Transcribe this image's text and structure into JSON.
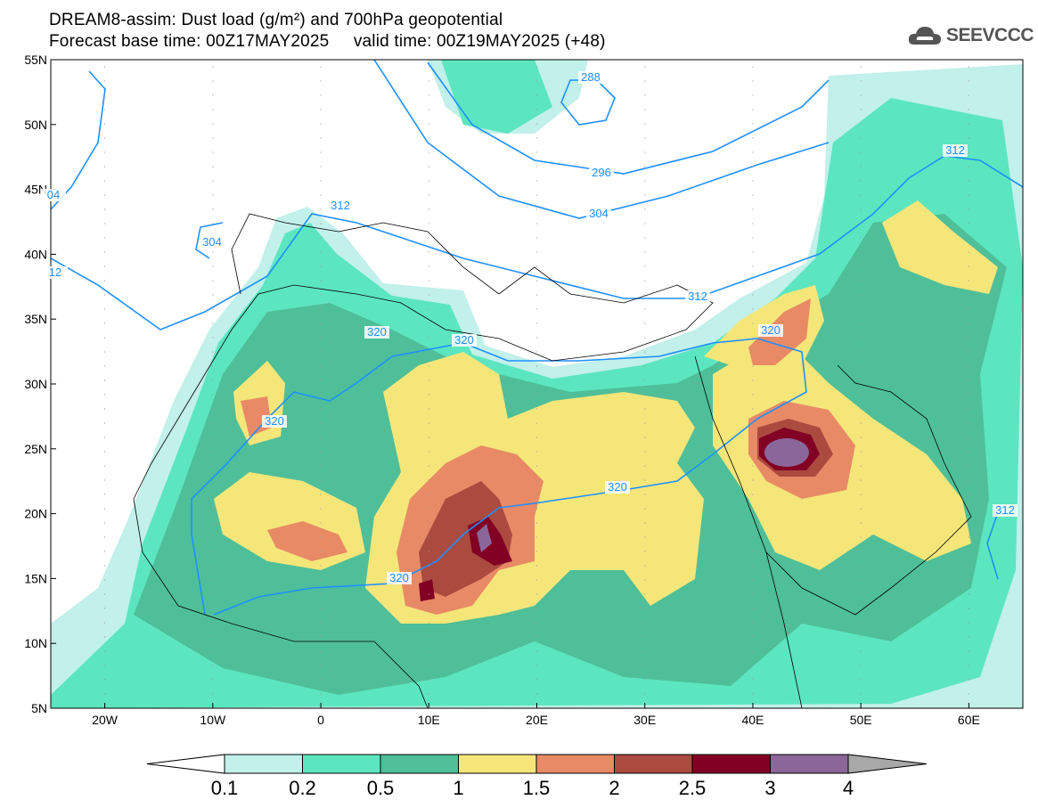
{
  "title": {
    "line1": "DREAM8-assim: Dust load (g/m²) and 700hPa geopotential",
    "line2": "Forecast base time: 00Z17MAY2025     valid time: 00Z19MAY2025 (+48)"
  },
  "logo": {
    "text": "SEEVCCC",
    "icon": "cloud-icon"
  },
  "map": {
    "lon_labels": [
      [
        "20W",
        -20
      ],
      [
        "10W",
        -10
      ],
      [
        "0",
        0
      ],
      [
        "10E",
        10
      ],
      [
        "20E",
        20
      ],
      [
        "30E",
        30
      ],
      [
        "40E",
        40
      ],
      [
        "50E",
        50
      ],
      [
        "60E",
        60
      ]
    ],
    "lat_labels": [
      [
        "5N",
        5
      ],
      [
        "10N",
        10
      ],
      [
        "15N",
        15
      ],
      [
        "20N",
        20
      ],
      [
        "25N",
        25
      ],
      [
        "30N",
        30
      ],
      [
        "35N",
        35
      ],
      [
        "40N",
        40
      ],
      [
        "45N",
        45
      ],
      [
        "50N",
        50
      ],
      [
        "55N",
        55
      ]
    ],
    "contour_labels": [
      "288",
      "296",
      "304",
      "312",
      "320",
      "320",
      "320",
      "320",
      "320",
      "320",
      "312",
      "312",
      "304",
      "12",
      "04",
      "312"
    ]
  },
  "colorbar": {
    "levels": [
      "0.1",
      "0.2",
      "0.5",
      "1",
      "1.5",
      "2",
      "2.5",
      "3",
      "4"
    ],
    "colors": [
      "#c2f0ea",
      "#5ce6bf",
      "#4fbf99",
      "#f5e67a",
      "#e88a66",
      "#ab4a3f",
      "#820024",
      "#8a6699"
    ],
    "over_color": "#a8a8a8",
    "under_color": "#ffffff"
  },
  "contour_color": "#1e90ff"
}
